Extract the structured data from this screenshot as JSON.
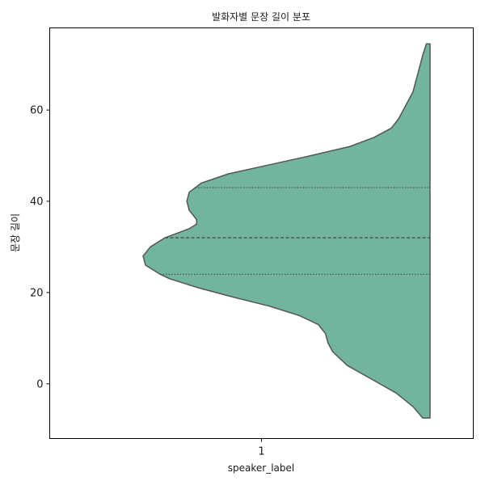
{
  "chart_data": {
    "type": "violin",
    "title": "발화자별 문장 길이 분포",
    "xlabel": "speaker_label",
    "ylabel": "문장 길이",
    "categories": [
      "1"
    ],
    "ylim": [
      -12,
      78
    ],
    "yticks": [
      0,
      20,
      40,
      60
    ],
    "grid": false,
    "split": "half-violin (left side only)",
    "fill_color": "#73b49f",
    "edge_color": "#555555",
    "density_range": [
      -7.5,
      74.5
    ],
    "quartiles": {
      "q1": 24,
      "median": 32,
      "q3": 43
    },
    "density_profile": [
      [
        -7.5,
        0.03
      ],
      [
        -5,
        0.07
      ],
      [
        -2,
        0.14
      ],
      [
        1,
        0.24
      ],
      [
        4,
        0.34
      ],
      [
        7,
        0.4
      ],
      [
        9,
        0.42
      ],
      [
        11,
        0.43
      ],
      [
        13,
        0.46
      ],
      [
        15,
        0.54
      ],
      [
        17,
        0.66
      ],
      [
        19,
        0.81
      ],
      [
        21,
        0.95
      ],
      [
        23,
        1.07
      ],
      [
        24,
        1.11
      ],
      [
        26,
        1.17
      ],
      [
        28,
        1.18
      ],
      [
        30,
        1.15
      ],
      [
        32,
        1.09
      ],
      [
        34,
        0.99
      ],
      [
        35,
        0.96
      ],
      [
        36,
        0.96
      ],
      [
        38,
        0.99
      ],
      [
        40,
        1.0
      ],
      [
        42,
        0.99
      ],
      [
        44,
        0.94
      ],
      [
        46,
        0.83
      ],
      [
        48,
        0.66
      ],
      [
        50,
        0.49
      ],
      [
        52,
        0.33
      ],
      [
        54,
        0.23
      ],
      [
        56,
        0.16
      ],
      [
        58,
        0.13
      ],
      [
        60,
        0.11
      ],
      [
        62,
        0.09
      ],
      [
        64,
        0.07
      ],
      [
        66,
        0.06
      ],
      [
        68,
        0.05
      ],
      [
        70,
        0.04
      ],
      [
        72,
        0.03
      ],
      [
        74.5,
        0.015
      ]
    ]
  }
}
